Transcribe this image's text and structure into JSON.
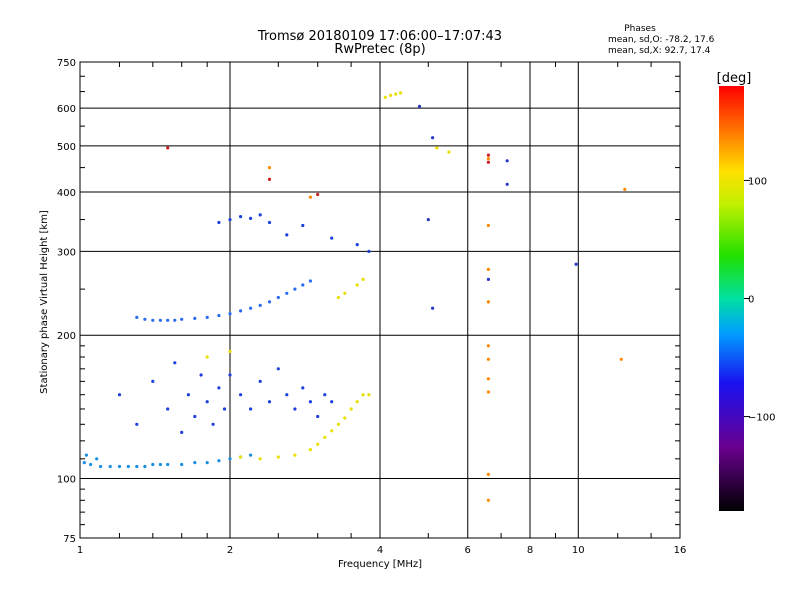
{
  "chart_data": {
    "type": "scatter",
    "title": "Tromsø 20180109 17:06:00–17:07:43",
    "subtitle": "RwPretec (8p)",
    "xlabel": "Frequency [MHz]",
    "ylabel": "Stationary phase Virtual Height [km]",
    "x_scale": "log",
    "y_scale": "log",
    "xlim": [
      1,
      16
    ],
    "ylim": [
      75,
      750
    ],
    "x_ticks": [
      1,
      2,
      4,
      6,
      8,
      10,
      16
    ],
    "y_ticks": [
      75,
      100,
      200,
      300,
      400,
      500,
      600,
      750
    ],
    "grid": true,
    "legend": {
      "title": "Phases",
      "lines": [
        "mean, sd,O: -78.2, 17.6",
        "mean, sd,X:  92.7, 17.4"
      ],
      "placement": "top-right"
    },
    "colorbar": {
      "label": "[deg]",
      "range": [
        -180,
        180
      ],
      "ticks": [
        {
          "value": 100,
          "label": "100"
        },
        {
          "value": 0,
          "label": "0"
        },
        {
          "value": -100,
          "label": "−100"
        }
      ]
    },
    "series": [
      {
        "color": "#1890e0",
        "points": [
          [
            1.02,
            108
          ],
          [
            1.05,
            107
          ],
          [
            1.1,
            106
          ],
          [
            1.15,
            106
          ],
          [
            1.2,
            106
          ],
          [
            1.25,
            106
          ],
          [
            1.3,
            106
          ],
          [
            1.35,
            106
          ],
          [
            1.4,
            107
          ],
          [
            1.45,
            107
          ],
          [
            1.5,
            107
          ],
          [
            1.6,
            107
          ],
          [
            1.7,
            108
          ],
          [
            1.8,
            108
          ],
          [
            1.9,
            109
          ],
          [
            2.0,
            110
          ],
          [
            2.1,
            111
          ],
          [
            2.2,
            112
          ],
          [
            1.03,
            112
          ],
          [
            1.08,
            110
          ]
        ]
      },
      {
        "color": "#2a6cf0",
        "points": [
          [
            1.3,
            218
          ],
          [
            1.35,
            216
          ],
          [
            1.4,
            215
          ],
          [
            1.45,
            215
          ],
          [
            1.5,
            215
          ],
          [
            1.55,
            215
          ],
          [
            1.6,
            216
          ],
          [
            1.7,
            217
          ],
          [
            1.8,
            218
          ],
          [
            1.9,
            220
          ],
          [
            2.0,
            222
          ],
          [
            2.1,
            225
          ],
          [
            2.2,
            228
          ],
          [
            2.3,
            231
          ],
          [
            2.4,
            235
          ],
          [
            2.5,
            240
          ],
          [
            2.6,
            245
          ],
          [
            2.7,
            250
          ],
          [
            2.8,
            255
          ],
          [
            2.9,
            260
          ]
        ]
      },
      {
        "color": "#1e40dc",
        "points": [
          [
            1.2,
            150
          ],
          [
            1.3,
            130
          ],
          [
            1.4,
            160
          ],
          [
            1.5,
            140
          ],
          [
            1.55,
            175
          ],
          [
            1.6,
            125
          ],
          [
            1.65,
            150
          ],
          [
            1.7,
            135
          ],
          [
            1.75,
            165
          ],
          [
            1.8,
            145
          ],
          [
            1.85,
            130
          ],
          [
            1.9,
            155
          ],
          [
            1.95,
            140
          ],
          [
            2.0,
            165
          ],
          [
            2.1,
            150
          ],
          [
            2.2,
            140
          ],
          [
            2.3,
            160
          ],
          [
            2.4,
            145
          ],
          [
            2.5,
            170
          ],
          [
            2.6,
            150
          ],
          [
            2.7,
            140
          ],
          [
            2.8,
            155
          ],
          [
            2.9,
            145
          ],
          [
            3.0,
            135
          ],
          [
            3.1,
            150
          ],
          [
            3.2,
            145
          ],
          [
            1.9,
            345
          ],
          [
            2.0,
            350
          ],
          [
            2.1,
            355
          ],
          [
            2.2,
            352
          ],
          [
            2.3,
            358
          ],
          [
            2.4,
            345
          ],
          [
            2.6,
            325
          ],
          [
            2.8,
            340
          ],
          [
            3.2,
            320
          ],
          [
            3.6,
            310
          ],
          [
            3.8,
            300
          ]
        ]
      },
      {
        "color": "#e8e000",
        "points": [
          [
            2.1,
            111
          ],
          [
            2.3,
            110
          ],
          [
            2.5,
            111
          ],
          [
            2.7,
            112
          ],
          [
            2.9,
            115
          ],
          [
            3.0,
            118
          ],
          [
            3.1,
            122
          ],
          [
            3.2,
            126
          ],
          [
            3.3,
            130
          ],
          [
            3.4,
            134
          ],
          [
            3.5,
            140
          ],
          [
            3.6,
            145
          ],
          [
            3.7,
            150
          ],
          [
            3.8,
            150
          ],
          [
            3.3,
            240
          ],
          [
            3.4,
            245
          ],
          [
            3.6,
            255
          ],
          [
            3.7,
            262
          ],
          [
            1.8,
            180
          ],
          [
            2.0,
            185
          ],
          [
            4.1,
            632
          ],
          [
            4.2,
            638
          ],
          [
            4.3,
            642
          ],
          [
            4.4,
            646
          ],
          [
            5.2,
            495
          ],
          [
            5.5,
            485
          ]
        ]
      },
      {
        "color": "#ff8800",
        "points": [
          [
            6.6,
            470
          ],
          [
            6.6,
            340
          ],
          [
            6.6,
            275
          ],
          [
            6.6,
            235
          ],
          [
            6.6,
            190
          ],
          [
            6.6,
            178
          ],
          [
            6.6,
            162
          ],
          [
            6.6,
            152
          ],
          [
            6.6,
            102
          ],
          [
            6.6,
            90
          ],
          [
            12.2,
            178
          ],
          [
            12.4,
            405
          ],
          [
            2.9,
            390
          ],
          [
            2.4,
            450
          ]
        ]
      },
      {
        "color": "#cc2020",
        "points": [
          [
            1.5,
            495
          ],
          [
            2.4,
            425
          ],
          [
            3.0,
            395
          ],
          [
            6.6,
            478
          ],
          [
            6.6,
            462
          ]
        ]
      },
      {
        "color": "#2838c8",
        "points": [
          [
            4.8,
            605
          ],
          [
            5.1,
            520
          ],
          [
            7.2,
            465
          ],
          [
            7.2,
            415
          ],
          [
            9.9,
            282
          ],
          [
            6.6,
            262
          ],
          [
            5.0,
            350
          ],
          [
            5.1,
            228
          ]
        ]
      }
    ]
  }
}
